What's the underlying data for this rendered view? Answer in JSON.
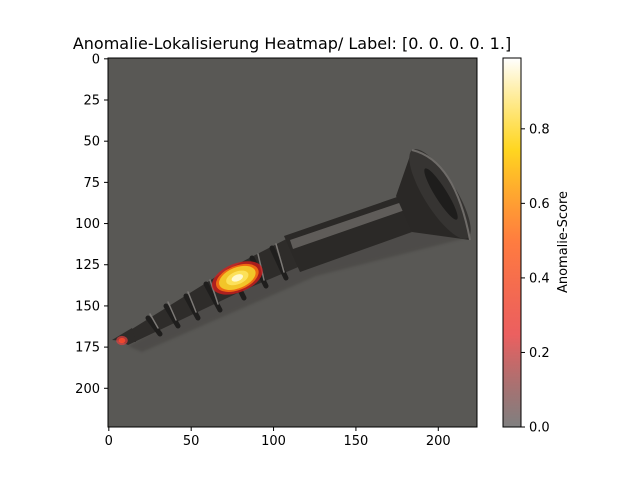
{
  "chart_data": {
    "type": "heatmap",
    "title": "Anomalie-Lokalisierung Heatmap/ Label: [0. 0. 0. 0. 1.]",
    "xlabel": "",
    "ylabel": "",
    "image_extent": {
      "xlim": [
        -0.5,
        223.5
      ],
      "ylim": [
        223.5,
        -0.5
      ]
    },
    "x_ticks": [
      0,
      50,
      100,
      150,
      200
    ],
    "y_ticks": [
      0,
      25,
      50,
      75,
      100,
      125,
      150,
      175,
      200
    ],
    "colorbar": {
      "label": "Anomalie-Score",
      "range": [
        0.0,
        0.99
      ],
      "ticks": [
        0.0,
        0.2,
        0.4,
        0.6,
        0.8
      ],
      "tick_labels": [
        "0.0",
        "0.2",
        "0.4",
        "0.6",
        "0.8"
      ],
      "colormap": "hot",
      "colormap_stops": [
        "#000000",
        "#e00000",
        "#ff5000",
        "#ffd000",
        "#ffffff"
      ]
    },
    "background_image": "dark-grey photo of a screw with countersunk head, lying diagonally",
    "hotspots": [
      {
        "x": 78,
        "y": 133,
        "score": 0.95,
        "rx": 13,
        "ry": 7,
        "angle": -22
      },
      {
        "x": 8,
        "y": 171,
        "score": 0.35,
        "rx": 2.5,
        "ry": 2,
        "angle": 0
      }
    ]
  }
}
